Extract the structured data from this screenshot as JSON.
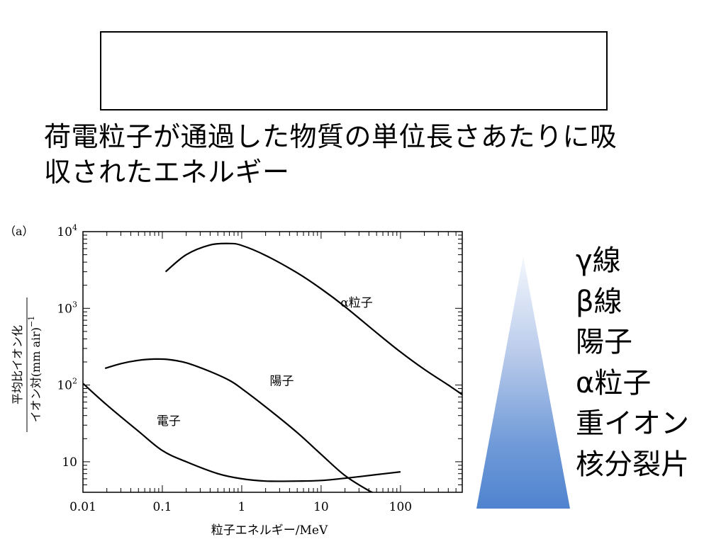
{
  "heading": {
    "line1": "荷電粒子が通過した物質の単位長さあたりに吸",
    "line2": "収されたエネルギー"
  },
  "ranking": {
    "items": [
      "γ線",
      "β線",
      "陽子",
      "α粒子",
      "重イオン",
      "核分裂片"
    ],
    "gradient_colors": [
      "#f4f8fd",
      "#4f83cf"
    ]
  },
  "chart_data": {
    "type": "line",
    "panel_label": "（a）",
    "xlabel": "粒子エネルギー/MeV",
    "ylabel_top": "平均比イオン化",
    "ylabel_bottom": "イオン対(mm air)",
    "ylabel_exponent": "−1",
    "x_scale": "log",
    "y_scale": "log",
    "xlim": [
      0.01,
      600
    ],
    "ylim": [
      4,
      10000
    ],
    "x_ticks": [
      {
        "value": 0.01,
        "label": "0.01"
      },
      {
        "value": 0.1,
        "label": "0.1"
      },
      {
        "value": 1,
        "label": "1"
      },
      {
        "value": 10,
        "label": "10"
      },
      {
        "value": 100,
        "label": "100"
      }
    ],
    "y_ticks": [
      {
        "value": 10,
        "label": "10",
        "exp": ""
      },
      {
        "value": 100,
        "label": "10",
        "exp": "2"
      },
      {
        "value": 1000,
        "label": "10",
        "exp": "3"
      },
      {
        "value": 10000,
        "label": "10",
        "exp": "4"
      }
    ],
    "grid": false,
    "series": [
      {
        "name": "α粒子",
        "label_at": [
          28,
          1050
        ],
        "x": [
          0.11,
          0.2,
          0.4,
          0.7,
          1.0,
          2,
          5,
          10,
          20,
          50,
          100,
          200,
          400,
          600
        ],
        "y": [
          3000,
          5000,
          6700,
          7000,
          6600,
          4900,
          2900,
          1800,
          1050,
          480,
          270,
          160,
          100,
          75
        ]
      },
      {
        "name": "陽子",
        "label_at": [
          3.2,
          100
        ],
        "x": [
          0.019,
          0.03,
          0.05,
          0.08,
          0.12,
          0.2,
          0.4,
          0.7,
          1,
          2,
          5,
          10,
          20,
          40,
          50
        ],
        "y": [
          165,
          190,
          210,
          218,
          215,
          195,
          150,
          115,
          90,
          52,
          24,
          12.5,
          6.6,
          4.2,
          3.8
        ]
      },
      {
        "name": "電子",
        "label_at": [
          0.12,
          30
        ],
        "x": [
          0.01,
          0.02,
          0.05,
          0.1,
          0.2,
          0.5,
          1,
          2,
          5,
          10,
          20,
          50,
          100
        ],
        "y": [
          105,
          55,
          25,
          14,
          10,
          7,
          6,
          5.6,
          5.6,
          5.7,
          6.1,
          6.8,
          7.4
        ]
      }
    ]
  }
}
